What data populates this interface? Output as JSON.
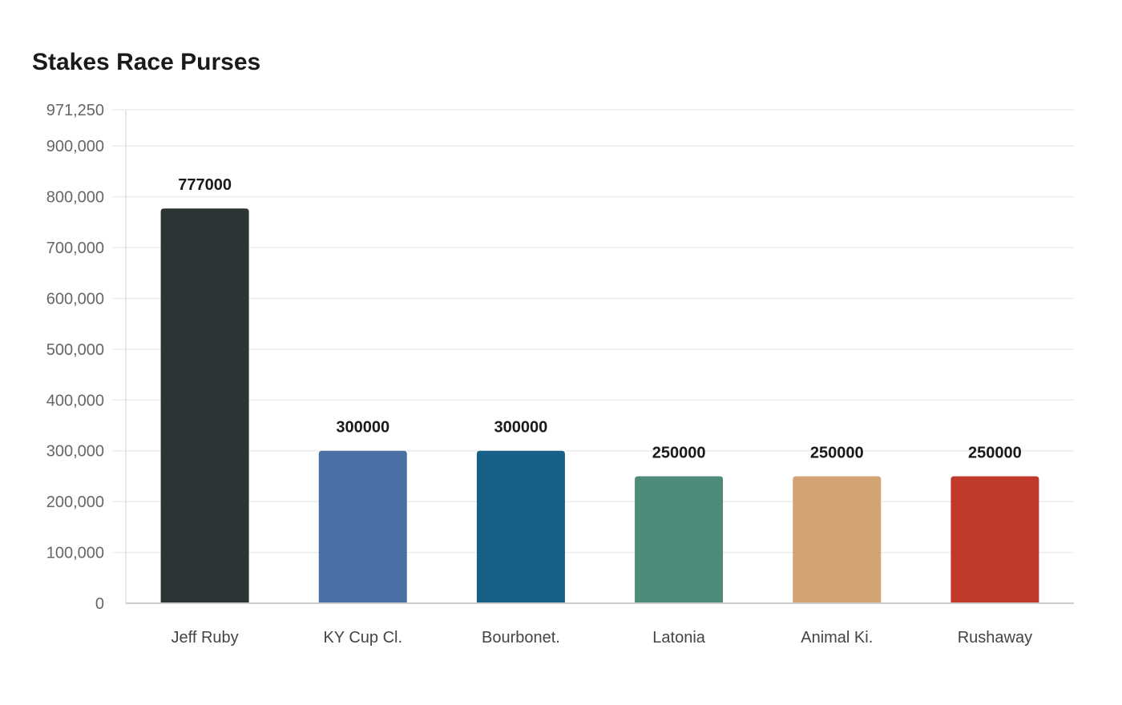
{
  "chart_data": {
    "type": "bar",
    "title": "Stakes Race Purses",
    "categories": [
      "Jeff Ruby",
      "KY Cup Cl.",
      "Bourbonet.",
      "Latonia",
      "Animal Ki.",
      "Rushaway"
    ],
    "values": [
      777000,
      300000,
      300000,
      250000,
      250000,
      250000
    ],
    "data_labels": [
      "777000",
      "300000",
      "300000",
      "250000",
      "250000",
      "250000"
    ],
    "colors": [
      "#2d3436",
      "#4a6fa5",
      "#166088",
      "#4f8b7a",
      "#d4a373",
      "#c0392b"
    ],
    "ylim": [
      0,
      971250
    ],
    "yticks": [
      0,
      100000,
      200000,
      300000,
      400000,
      500000,
      600000,
      700000,
      800000,
      900000,
      971250
    ],
    "ytick_labels": [
      "0",
      "100,000",
      "200,000",
      "300,000",
      "400,000",
      "500,000",
      "600,000",
      "700,000",
      "800,000",
      "900,000",
      "971,250"
    ],
    "xlabel": "",
    "ylabel": "",
    "grid": true,
    "legend": "none"
  }
}
